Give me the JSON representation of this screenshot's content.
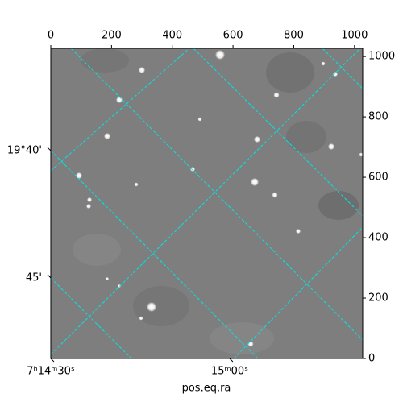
{
  "chart_data": {
    "type": "image",
    "xlabel": "pos.eq.ra",
    "xlim": [
      0,
      1027
    ],
    "ylim": [
      0,
      1027
    ],
    "xticks": [
      0,
      200,
      400,
      600,
      800,
      1000
    ],
    "yticks": [
      0,
      200,
      400,
      600,
      800,
      1000
    ],
    "world_xticks": [
      {
        "value": 0,
        "label": "7ʰ14ᵐ30ˢ"
      },
      {
        "value": 589,
        "label": "15ᵐ00ˢ"
      }
    ],
    "world_yticks": [
      {
        "value": 688,
        "label": "19°40'"
      },
      {
        "value": 267,
        "label": "45'"
      }
    ],
    "grid_color": "#00e5e5"
  }
}
